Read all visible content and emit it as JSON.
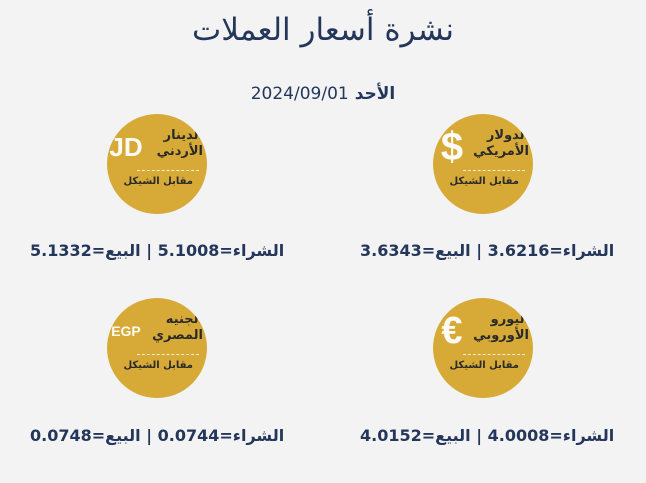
{
  "header": {
    "title": "نشرة أسعار العملات",
    "day": "الأحد",
    "date": "2024/09/01"
  },
  "colors": {
    "coin": "#d7aa37",
    "text": "#24375a",
    "background": "#f3f3f4"
  },
  "common": {
    "versus": "مقابل الشيكل",
    "buy_label": "الشراء=",
    "sell_label": "البيع=",
    "separator": "|"
  },
  "currencies": [
    {
      "symbol": "$",
      "name": "الدولار الأمريكي",
      "buy": "3.6216",
      "sell": "3.6343"
    },
    {
      "symbol": "JD",
      "name": "الدينار الأردني",
      "buy": "5.1008",
      "sell": "5.1332"
    },
    {
      "symbol": "€",
      "name": "اليورو الأوروبي",
      "buy": "4.0008",
      "sell": "4.0152"
    },
    {
      "symbol": "EGP",
      "name": "الجنيه المصري",
      "buy": "0.0744",
      "sell": "0.0748"
    }
  ]
}
